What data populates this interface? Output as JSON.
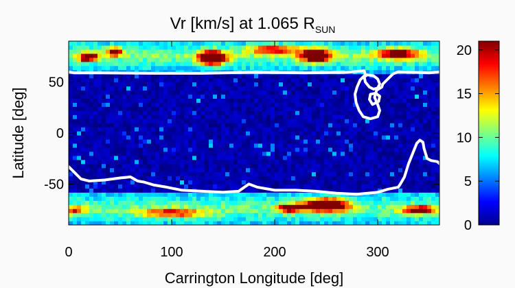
{
  "chart_data": {
    "type": "heatmap",
    "title": {
      "main": "Vr [km/s] at 1.065 R",
      "subscript": "SUN"
    },
    "xlabel": "Carrington Longitude [deg]",
    "ylabel": "Latitude [deg]",
    "xlim": [
      0,
      360
    ],
    "ylim": [
      -90,
      90
    ],
    "x_ticks": [
      0,
      100,
      200,
      300
    ],
    "y_ticks": [
      50,
      0,
      -50
    ],
    "colorbar": {
      "range": [
        0,
        21
      ],
      "ticks": [
        0,
        5,
        10,
        15,
        20
      ],
      "colormap": "jet"
    },
    "grid": false,
    "field_description": {
      "north_polar_cap_lat_min": 58,
      "south_polar_cap_lat_max": -58,
      "polar_value_range_km_s": [
        4,
        20
      ],
      "equatorial_value_range_km_s": [
        0,
        3
      ]
    },
    "contour": {
      "color": "#ffffff",
      "segments": [
        [
          [
            0,
            60
          ],
          [
            5,
            59
          ],
          [
            30,
            59
          ],
          [
            80,
            58.5
          ],
          [
            130,
            58.5
          ],
          [
            180,
            59.5
          ],
          [
            230,
            59
          ],
          [
            270,
            59.5
          ],
          [
            287,
            61
          ],
          [
            288,
            57
          ],
          [
            283,
            52
          ],
          [
            280,
            45
          ],
          [
            278,
            38
          ],
          [
            279,
            30
          ],
          [
            282,
            22
          ],
          [
            286,
            16
          ],
          [
            293,
            14
          ],
          [
            300,
            16
          ],
          [
            302,
            22
          ],
          [
            300,
            28
          ],
          [
            297,
            35
          ],
          [
            299,
            42
          ],
          [
            304,
            45
          ],
          [
            305,
            48
          ],
          [
            310,
            53
          ],
          [
            315,
            58
          ],
          [
            320,
            60
          ],
          [
            335,
            59.5
          ],
          [
            350,
            59
          ],
          [
            360,
            60
          ]
        ],
        [
          [
            292,
            45
          ],
          [
            288,
            50
          ],
          [
            287,
            55
          ],
          [
            290,
            57
          ],
          [
            296,
            56
          ],
          [
            300,
            53
          ],
          [
            302,
            48
          ],
          [
            300,
            44
          ],
          [
            296,
            43
          ],
          [
            292,
            45
          ]
        ],
        [
          [
            295,
            28
          ],
          [
            292,
            33
          ],
          [
            293,
            38
          ],
          [
            298,
            39
          ],
          [
            302,
            36
          ],
          [
            301,
            31
          ],
          [
            295,
            28
          ]
        ],
        [
          [
            0,
            -33
          ],
          [
            5,
            -38
          ],
          [
            12,
            -45
          ],
          [
            20,
            -47
          ],
          [
            35,
            -46
          ],
          [
            50,
            -44
          ],
          [
            60,
            -43
          ],
          [
            67,
            -47
          ],
          [
            73,
            -48
          ],
          [
            83,
            -51
          ],
          [
            95,
            -53
          ],
          [
            110,
            -56
          ],
          [
            130,
            -57
          ],
          [
            150,
            -58
          ],
          [
            165,
            -57
          ],
          [
            175,
            -50
          ],
          [
            183,
            -53
          ],
          [
            200,
            -56
          ],
          [
            220,
            -56
          ],
          [
            240,
            -57
          ],
          [
            260,
            -59
          ],
          [
            280,
            -60
          ],
          [
            300,
            -58
          ],
          [
            310,
            -55
          ],
          [
            320,
            -53
          ],
          [
            322,
            -50
          ],
          [
            326,
            -43
          ],
          [
            330,
            -30
          ],
          [
            334,
            -20
          ],
          [
            338,
            -10
          ],
          [
            341,
            -7
          ],
          [
            344,
            -9
          ],
          [
            345,
            -15
          ],
          [
            348,
            -25
          ],
          [
            352,
            -27
          ],
          [
            358,
            -28
          ],
          [
            360,
            -30
          ]
        ]
      ]
    }
  }
}
